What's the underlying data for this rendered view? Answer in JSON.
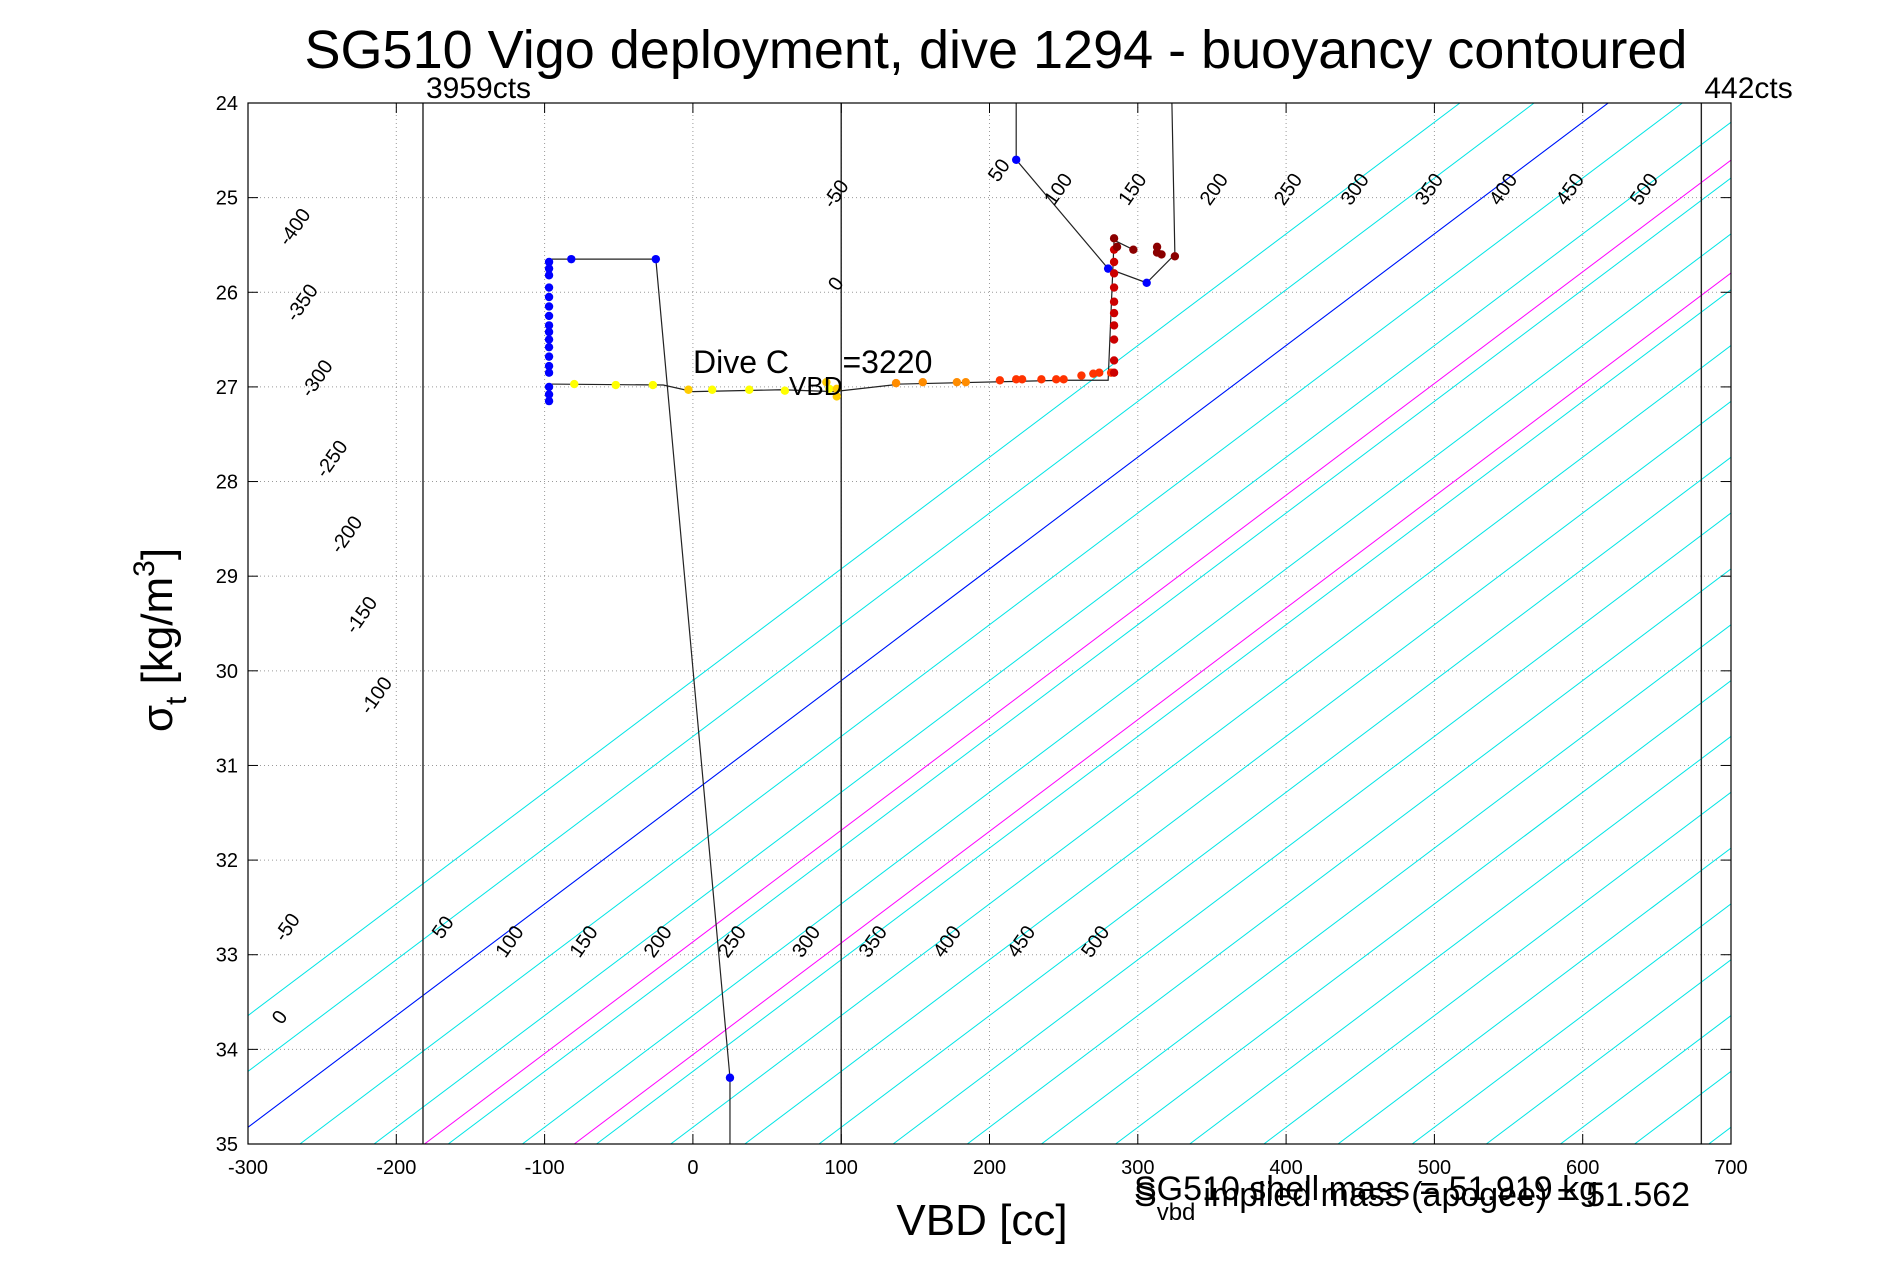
{
  "chart_data": {
    "type": "scatter",
    "title": "SG510 Vigo deployment, dive 1294 - buoyancy contoured",
    "xlabel": "VBD [cc]",
    "ylabel": "σt [kg/m3]",
    "xlim": [
      -300,
      700
    ],
    "ylim": [
      24,
      35
    ],
    "y_direction": "reversed",
    "grid": true,
    "x_ticks": [
      -300,
      -200,
      -100,
      0,
      100,
      200,
      300,
      400,
      500,
      600,
      700
    ],
    "y_ticks": [
      24,
      25,
      26,
      27,
      28,
      29,
      30,
      31,
      32,
      33,
      34,
      35
    ],
    "vertical_lines": [
      {
        "x": -182,
        "label": "3959cts"
      },
      {
        "x": 100,
        "label": ""
      },
      {
        "x": 680,
        "label": "442cts"
      }
    ],
    "annotations": {
      "dive_cvbd_prefix": "Dive C",
      "dive_cvbd_sub": "VBD",
      "dive_cvbd_value": "=3220",
      "footnote_1": "SG510 shell mass = 51.919 kg",
      "footnote_2a": "S",
      "footnote_2b": "vbd",
      "footnote_2c": "implied mass (apogee) = 51.562"
    },
    "contours": {
      "offset_per_vbd": 0.0118,
      "lower_labels": [
        "-50",
        "0",
        "50",
        "100",
        "150",
        "200",
        "250",
        "300",
        "350",
        "400",
        "450",
        "500"
      ],
      "lower_values": [
        -50,
        0,
        50,
        100,
        150,
        200,
        250,
        300,
        350,
        400,
        450,
        500
      ],
      "upper_labels": [
        "-400",
        "-350",
        "-300",
        "-250",
        "-200",
        "-150",
        "-100",
        "-50",
        "0",
        "50",
        "100",
        "150",
        "200",
        "250",
        "300",
        "350",
        "400",
        "450",
        "500"
      ],
      "upper_values": [
        -400,
        -350,
        -300,
        -250,
        -200,
        -150,
        -100,
        -50,
        0,
        50,
        100,
        150,
        200,
        250,
        300,
        350,
        400,
        450,
        500
      ],
      "lines": [
        {
          "x0": -415,
          "color": "#00e5e5"
        },
        {
          "x0": -365,
          "color": "#00e5e5"
        },
        {
          "x0": -315,
          "color": "#00e5e5"
        },
        {
          "x0": -265,
          "color": "#00e5e5"
        },
        {
          "x0": -215,
          "color": "#00e5e5"
        },
        {
          "x0": -165,
          "color": "#00e5e5"
        },
        {
          "x0": -115,
          "color": "#00e5e5"
        },
        {
          "x0": -65,
          "color": "#00e5e5"
        },
        {
          "x0": -15,
          "color": "#00e5e5"
        },
        {
          "x0": 35,
          "color": "#00e5e5"
        },
        {
          "x0": 85,
          "color": "#00e5e5"
        },
        {
          "x0": 135,
          "color": "#00e5e5"
        },
        {
          "x0": 185,
          "color": "#00e5e5"
        },
        {
          "x0": 235,
          "color": "#00e5e5"
        },
        {
          "x0": 285,
          "color": "#00e5e5"
        },
        {
          "x0": 335,
          "color": "#00e5e5"
        },
        {
          "x0": 385,
          "color": "#00e5e5"
        },
        {
          "x0": 435,
          "color": "#00e5e5"
        },
        {
          "x0": 485,
          "color": "#00e5e5"
        },
        {
          "x0": 535,
          "color": "#00e5e5"
        },
        {
          "x0": 585,
          "color": "#00e5e5"
        },
        {
          "x0": 635,
          "color": "#00e5e5"
        },
        {
          "x0": 685,
          "color": "#00e5e5"
        },
        {
          "x0": 735,
          "color": "#00e5e5"
        },
        {
          "x0": 785,
          "color": "#00e5e5"
        },
        {
          "x0": 835,
          "color": "#00e5e5"
        },
        {
          "x0": 885,
          "color": "#00e5e5"
        },
        {
          "x0": 935,
          "color": "#00e5e5"
        },
        {
          "x0": 985,
          "color": "#00e5e5"
        },
        {
          "x0": 1035,
          "color": "#00e5e5"
        },
        {
          "x0": 1085,
          "color": "#00e5e5"
        },
        {
          "x0": 1135,
          "color": "#00e5e5"
        },
        {
          "x0": 1185,
          "color": "#00e5e5"
        },
        {
          "x0": -315,
          "color": "#0000ff"
        },
        {
          "x0": -181,
          "color": "#ff00ff"
        },
        {
          "x0": -80,
          "color": "#ff00ff"
        }
      ]
    },
    "trace_lines": [
      [
        [
          -97,
          25.65
        ],
        [
          -82,
          25.65
        ],
        [
          -25,
          25.65
        ],
        [
          25,
          34.3
        ],
        [
          25,
          35.0
        ]
      ],
      [
        [
          218,
          24.0
        ],
        [
          218,
          24.6
        ],
        [
          280,
          25.75
        ],
        [
          306,
          25.9
        ],
        [
          325,
          25.6
        ],
        [
          323,
          24.0
        ]
      ],
      [
        [
          -97,
          26.97
        ],
        [
          -20,
          26.98
        ],
        [
          0,
          27.05
        ],
        [
          60,
          27.03
        ],
        [
          95,
          27.05
        ],
        [
          140,
          26.97
        ],
        [
          250,
          26.93
        ],
        [
          280,
          26.93
        ],
        [
          284,
          25.45
        ],
        [
          297,
          25.55
        ]
      ]
    ],
    "series": [
      {
        "name": "",
        "color": "#0000ff",
        "points": [
          [
            -97,
            25.68
          ],
          [
            -97,
            25.75
          ],
          [
            -97,
            25.82
          ],
          [
            -97,
            25.95
          ],
          [
            -97,
            26.05
          ],
          [
            -97,
            26.15
          ],
          [
            -97,
            26.25
          ],
          [
            -97,
            26.35
          ],
          [
            -97,
            26.42
          ],
          [
            -97,
            26.5
          ],
          [
            -97,
            26.58
          ],
          [
            -97,
            26.68
          ],
          [
            -97,
            26.78
          ],
          [
            -97,
            26.85
          ],
          [
            -97,
            27.0
          ],
          [
            -97,
            27.08
          ],
          [
            -97,
            27.15
          ],
          [
            -82,
            25.65
          ],
          [
            -25,
            25.65
          ],
          [
            25,
            34.3
          ],
          [
            218,
            24.6
          ],
          [
            280,
            25.75
          ],
          [
            306,
            25.9
          ]
        ]
      },
      {
        "name": "",
        "color": "#ffff00",
        "points": [
          [
            -80,
            26.97
          ],
          [
            -52,
            26.98
          ],
          [
            -27,
            26.98
          ],
          [
            13,
            27.03
          ],
          [
            38,
            27.03
          ],
          [
            62,
            27.04
          ],
          [
            92,
            27.02
          ]
        ]
      },
      {
        "name": "",
        "color": "#ffcc00",
        "points": [
          [
            -3,
            27.03
          ],
          [
            90,
            26.95
          ],
          [
            97,
            27.02
          ],
          [
            97,
            27.1
          ]
        ]
      },
      {
        "name": "",
        "color": "#ff8c00",
        "points": [
          [
            137,
            26.96
          ],
          [
            155,
            26.95
          ],
          [
            178,
            26.95
          ],
          [
            184,
            26.95
          ]
        ]
      },
      {
        "name": "",
        "color": "#ff3300",
        "points": [
          [
            207,
            26.93
          ],
          [
            218,
            26.92
          ],
          [
            222,
            26.92
          ],
          [
            235,
            26.92
          ],
          [
            245,
            26.92
          ],
          [
            250,
            26.92
          ],
          [
            262,
            26.88
          ],
          [
            270,
            26.86
          ],
          [
            274,
            26.85
          ],
          [
            282,
            26.85
          ]
        ]
      },
      {
        "name": "",
        "color": "#cc0000",
        "points": [
          [
            284,
            26.85
          ],
          [
            284,
            26.72
          ],
          [
            284,
            26.5
          ],
          [
            284,
            26.35
          ],
          [
            284,
            26.22
          ],
          [
            284,
            26.1
          ],
          [
            284,
            25.95
          ],
          [
            284,
            25.8
          ],
          [
            284,
            25.68
          ],
          [
            284,
            25.55
          ]
        ]
      },
      {
        "name": "",
        "color": "#8b0000",
        "points": [
          [
            284,
            25.43
          ],
          [
            286,
            25.52
          ],
          [
            297,
            25.55
          ],
          [
            313,
            25.52
          ],
          [
            313,
            25.58
          ],
          [
            316,
            25.6
          ],
          [
            325,
            25.62
          ]
        ]
      }
    ]
  }
}
